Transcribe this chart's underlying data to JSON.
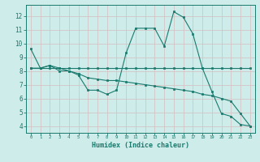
{
  "xlabel": "Humidex (Indice chaleur)",
  "bg_color": "#ceecea",
  "grid_color": "#b8dbd9",
  "line_color": "#1a7a6e",
  "xlim": [
    -0.5,
    23.5
  ],
  "ylim": [
    3.5,
    12.8
  ],
  "yticks": [
    4,
    5,
    6,
    7,
    8,
    9,
    10,
    11,
    12
  ],
  "xticks": [
    0,
    1,
    2,
    3,
    4,
    5,
    6,
    7,
    8,
    9,
    10,
    11,
    12,
    13,
    14,
    15,
    16,
    17,
    18,
    19,
    20,
    21,
    22,
    23
  ],
  "line1_x": [
    0,
    1,
    2,
    3,
    4,
    5,
    6,
    7,
    8,
    9,
    10,
    11,
    12,
    13,
    14,
    15,
    16,
    17,
    18,
    19,
    20,
    21,
    22,
    23
  ],
  "line1_y": [
    9.6,
    8.2,
    8.4,
    8.0,
    8.0,
    7.7,
    6.6,
    6.6,
    6.3,
    6.6,
    9.3,
    11.1,
    11.1,
    11.1,
    9.8,
    12.3,
    11.9,
    10.7,
    8.2,
    6.5,
    4.9,
    4.7,
    4.1,
    4.0
  ],
  "line2_x": [
    0,
    1,
    2,
    3,
    4,
    5,
    6,
    7,
    8,
    9,
    10,
    11,
    12,
    13,
    14,
    15,
    16,
    17,
    18,
    19,
    20,
    21,
    22,
    23
  ],
  "line2_y": [
    8.2,
    8.2,
    8.4,
    8.2,
    8.0,
    7.8,
    7.5,
    7.4,
    7.3,
    7.3,
    7.2,
    7.1,
    7.0,
    6.9,
    6.8,
    6.7,
    6.6,
    6.5,
    6.3,
    6.2,
    6.0,
    5.8,
    4.9,
    4.0
  ],
  "line3_x": [
    0,
    1,
    2,
    3,
    4,
    5,
    6,
    7,
    8,
    9,
    10,
    11,
    12,
    13,
    14,
    15,
    16,
    17,
    18,
    19,
    20,
    21,
    22,
    23
  ],
  "line3_y": [
    8.2,
    8.2,
    8.2,
    8.2,
    8.2,
    8.2,
    8.2,
    8.2,
    8.2,
    8.2,
    8.2,
    8.2,
    8.2,
    8.2,
    8.2,
    8.2,
    8.2,
    8.2,
    8.2,
    8.2,
    8.2,
    8.2,
    8.2,
    8.2
  ]
}
